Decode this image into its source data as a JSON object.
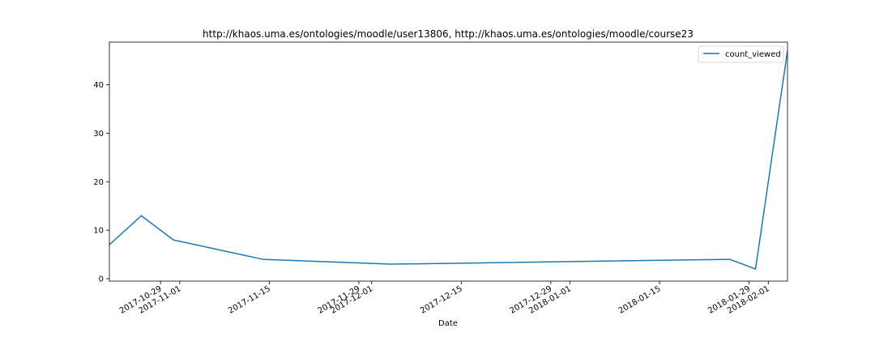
{
  "chart_data": {
    "type": "line",
    "title": "http://khaos.uma.es/ontologies/moodle/user13806, http://khaos.uma.es/ontologies/moodle/course23",
    "xlabel": "Date",
    "ylabel": "",
    "x_type": "date",
    "xlim": [
      "2017-10-21",
      "2018-02-04"
    ],
    "ylim": [
      -0.5,
      48.8
    ],
    "yticks": [
      0,
      10,
      20,
      30,
      40
    ],
    "xticks": [
      "2017-10-29",
      "2017-11-01",
      "2017-11-15",
      "2017-11-29",
      "2017-12-01",
      "2017-12-15",
      "2017-12-29",
      "2018-01-01",
      "2018-01-15",
      "2018-01-29",
      "2018-02-01"
    ],
    "grid": false,
    "legend": "top-right",
    "series": [
      {
        "name": "count_viewed",
        "color": "#1f77b4",
        "x": [
          "2017-10-21",
          "2017-10-26",
          "2017-10-31",
          "2017-11-14",
          "2017-12-04",
          "2018-01-26",
          "2018-01-30",
          "2018-02-04"
        ],
        "y": [
          7,
          13,
          8,
          4,
          3,
          4,
          2,
          47
        ]
      }
    ]
  }
}
